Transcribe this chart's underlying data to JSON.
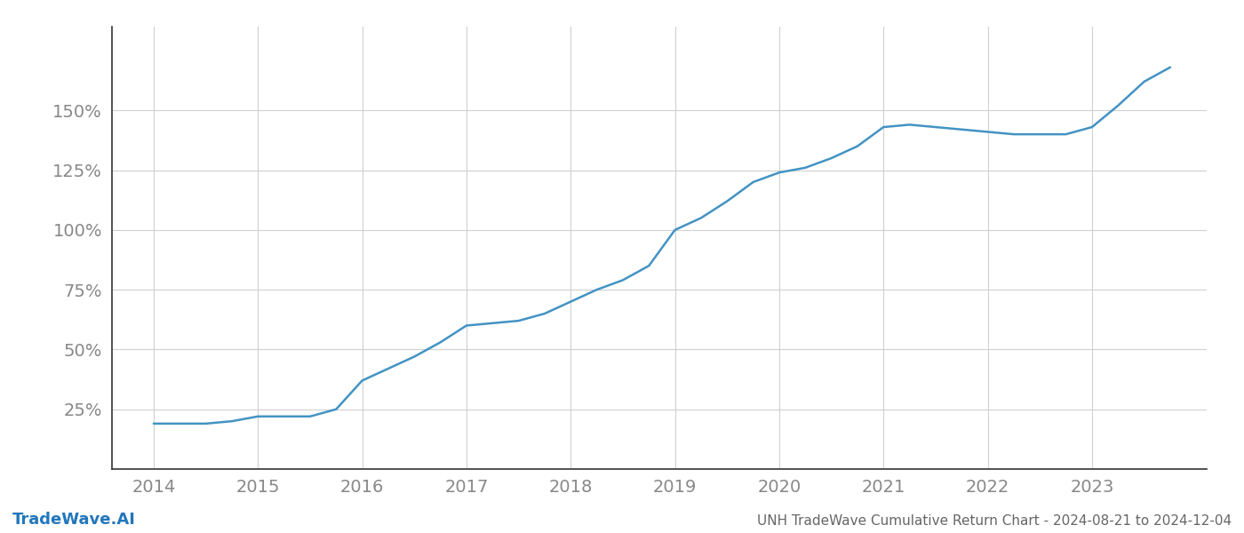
{
  "title": "UNH TradeWave Cumulative Return Chart - 2024-08-21 to 2024-12-04",
  "footer_left": "TradeWave.AI",
  "line_color": "#4393c3",
  "background_color": "#ffffff",
  "grid_color": "#d0d0d0",
  "x_values": [
    2014.0,
    2014.25,
    2014.5,
    2014.75,
    2015.0,
    2015.25,
    2015.5,
    2015.75,
    2016.0,
    2016.25,
    2016.5,
    2016.75,
    2017.0,
    2017.25,
    2017.5,
    2017.75,
    2018.0,
    2018.25,
    2018.5,
    2018.75,
    2019.0,
    2019.25,
    2019.5,
    2019.75,
    2020.0,
    2020.25,
    2020.5,
    2020.75,
    2021.0,
    2021.25,
    2021.5,
    2021.75,
    2022.0,
    2022.25,
    2022.5,
    2022.75,
    2023.0,
    2023.25,
    2023.5,
    2023.75
  ],
  "y_values": [
    19,
    19,
    19,
    20,
    22,
    22,
    22,
    25,
    37,
    42,
    47,
    53,
    60,
    61,
    62,
    65,
    70,
    75,
    79,
    85,
    100,
    105,
    112,
    120,
    124,
    126,
    130,
    135,
    143,
    144,
    143,
    142,
    141,
    140,
    140,
    140,
    143,
    152,
    162,
    168
  ],
  "yticks": [
    25,
    50,
    75,
    100,
    125,
    150
  ],
  "ytick_labels": [
    "25%",
    "50%",
    "75%",
    "100%",
    "125%",
    "150%"
  ],
  "xticks": [
    2014,
    2015,
    2016,
    2017,
    2018,
    2019,
    2020,
    2021,
    2022,
    2023
  ],
  "xtick_labels": [
    "2014",
    "2015",
    "2016",
    "2017",
    "2018",
    "2019",
    "2020",
    "2021",
    "2022",
    "2023"
  ],
  "xlim": [
    2013.6,
    2024.1
  ],
  "ylim": [
    0,
    185
  ],
  "line_width": 1.8,
  "tick_color": "#999999",
  "spine_color": "#333333",
  "axis_label_color": "#888888",
  "footer_color": "#2277bb",
  "footer_fontsize": 13,
  "title_color": "#666666",
  "title_fontsize": 11,
  "tick_fontsize": 14
}
